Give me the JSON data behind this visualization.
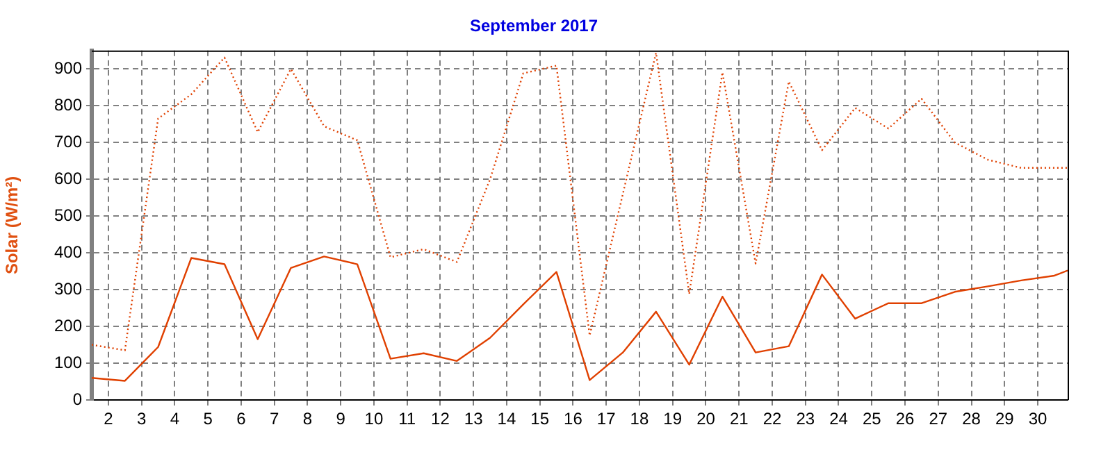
{
  "chart_data": {
    "type": "line",
    "title": "September 2017",
    "ylabel": "Solar (W/m²)",
    "xlim": [
      1.5,
      30.9
    ],
    "xticks": [
      2,
      3,
      4,
      5,
      6,
      7,
      8,
      9,
      10,
      11,
      12,
      13,
      14,
      15,
      16,
      17,
      18,
      19,
      20,
      21,
      22,
      23,
      24,
      25,
      26,
      27,
      28,
      29,
      30
    ],
    "ylim": [
      0,
      950
    ],
    "yticks": [
      0,
      100,
      200,
      300,
      400,
      500,
      600,
      700,
      800,
      900
    ],
    "grid": true,
    "legend": false,
    "marker": "none",
    "series": [
      {
        "color": "#e04000",
        "line_style": "dotted",
        "x": [
          1.5,
          2.5,
          3.5,
          4.5,
          5.5,
          6.5,
          7.5,
          8.5,
          9.5,
          10.5,
          11.5,
          12.5,
          13.5,
          14.5,
          15.5,
          16.5,
          17.5,
          18.5,
          19.5,
          20.5,
          21.5,
          22.5,
          23.5,
          24.5,
          25.5,
          26.5,
          27.5,
          28.5,
          29.5,
          30.5,
          30.9
        ],
        "values": [
          150,
          135,
          765,
          831,
          931,
          728,
          900,
          744,
          706,
          388,
          410,
          375,
          600,
          888,
          909,
          175,
          560,
          944,
          288,
          891,
          371,
          866,
          679,
          794,
          738,
          819,
          700,
          653,
          631,
          631,
          631
        ]
      },
      {
        "color": "#e04000",
        "line_style": "solid",
        "x": [
          1.5,
          2.5,
          3.5,
          4.5,
          5.5,
          6.5,
          7.5,
          8.5,
          9.5,
          10.5,
          11.5,
          12.5,
          13.5,
          14.5,
          15.5,
          16.5,
          17.5,
          18.5,
          19.5,
          20.5,
          21.5,
          22.5,
          23.5,
          24.5,
          25.5,
          26.5,
          27.5,
          28.5,
          29.5,
          30.5,
          30.9
        ],
        "values": [
          60,
          52,
          144,
          386,
          369,
          165,
          359,
          390,
          369,
          112,
          127,
          106,
          169,
          260,
          348,
          54,
          129,
          240,
          96,
          281,
          129,
          146,
          341,
          221,
          263,
          263,
          294,
          309,
          325,
          338,
          352
        ]
      }
    ]
  }
}
